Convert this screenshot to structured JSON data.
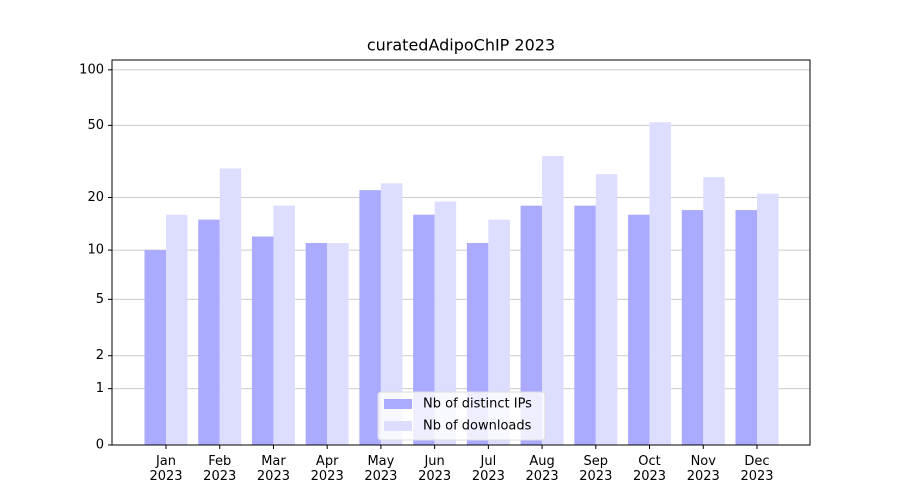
{
  "chart_data": {
    "type": "bar",
    "title": "curatedAdipoChIP 2023",
    "categories": [
      "Jan\n2023",
      "Feb\n2023",
      "Mar\n2023",
      "Apr\n2023",
      "May\n2023",
      "Jun\n2023",
      "Jul\n2023",
      "Aug\n2023",
      "Sep\n2023",
      "Oct\n2023",
      "Nov\n2023",
      "Dec\n2023"
    ],
    "series": [
      {
        "name": "Nb of distinct IPs",
        "color": "#aaaaff",
        "values": [
          10,
          15,
          12,
          11,
          22,
          16,
          11,
          18,
          18,
          16,
          17,
          17
        ]
      },
      {
        "name": "Nb of downloads",
        "color": "#ddddff",
        "values": [
          16,
          29,
          18,
          11,
          24,
          19,
          15,
          34,
          27,
          52,
          26,
          21
        ]
      }
    ],
    "yscale": "log1p",
    "ylim": [
      0,
      113
    ],
    "yticks": [
      0,
      1,
      2,
      5,
      10,
      20,
      50,
      100
    ],
    "grid": true,
    "legend": "lower center"
  }
}
